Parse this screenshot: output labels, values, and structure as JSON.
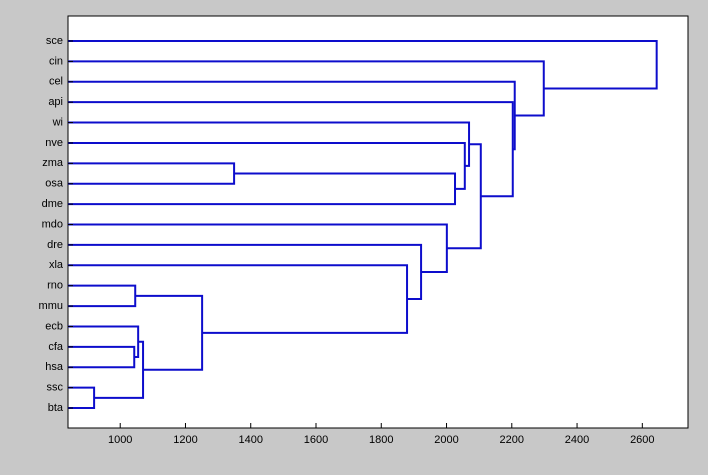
{
  "chart_data": {
    "type": "dendrogram",
    "leaves": [
      "sce",
      "cin",
      "cel",
      "api",
      "wi",
      "nve",
      "zma",
      "osa",
      "dme",
      "mdo",
      "dre",
      "xla",
      "rno",
      "mmu",
      "ecb",
      "cfa",
      "hsa",
      "ssc",
      "bta"
    ],
    "merges": [
      [
        17,
        18
      ],
      [
        15,
        16
      ],
      [
        14,
        20
      ],
      [
        21,
        19
      ],
      [
        12,
        13
      ],
      [
        23,
        22
      ],
      [
        11,
        24
      ],
      [
        10,
        25
      ],
      [
        9,
        26
      ],
      [
        6,
        7
      ],
      [
        28,
        8
      ],
      [
        5,
        29
      ],
      [
        4,
        30
      ],
      [
        31,
        27
      ],
      [
        3,
        32
      ],
      [
        2,
        33
      ],
      [
        1,
        34
      ],
      [
        0,
        35
      ]
    ],
    "heights": [
      920,
      1043,
      1055,
      1070,
      1046,
      1251,
      1879,
      1922,
      2001,
      1349,
      2026,
      2056,
      2069,
      2105,
      2203,
      2209,
      2298,
      2644
    ],
    "color": "#0d0dcc",
    "xlim": [
      840,
      2740
    ],
    "xticks": [
      1000,
      1200,
      1400,
      1600,
      1800,
      2000,
      2200,
      2400,
      2600
    ]
  }
}
